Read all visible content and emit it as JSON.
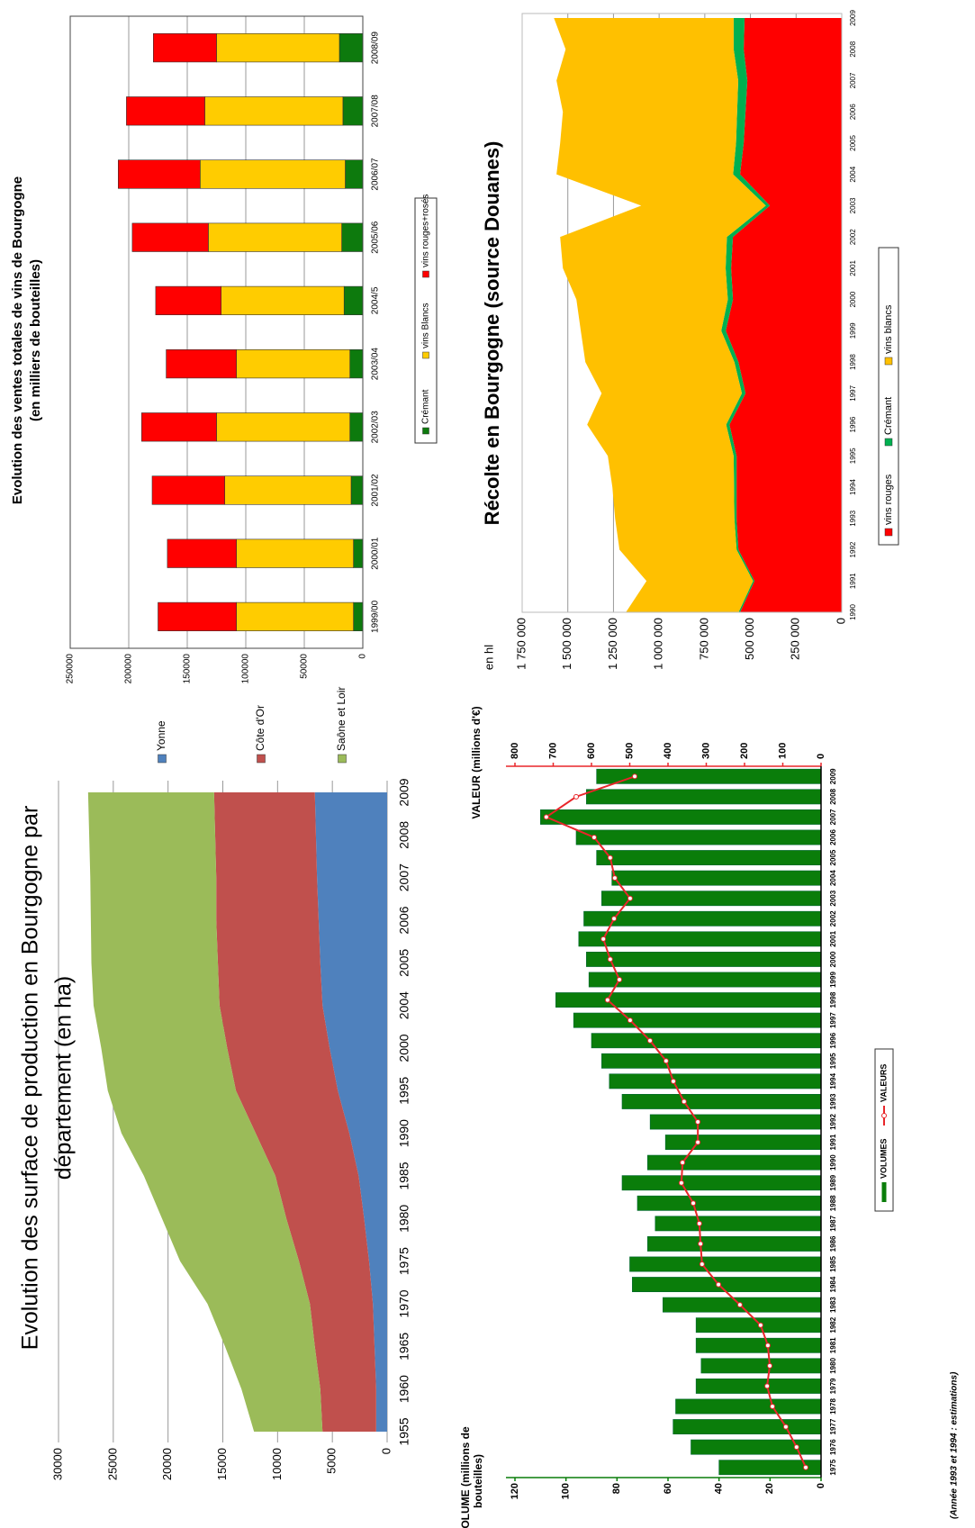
{
  "chart_data": [
    {
      "type": "bar",
      "stacked": true,
      "title": [
        "Evolution des ventes totales de vins de Bourgogne",
        "(en milliers de bouteilles)"
      ],
      "categories": [
        "1999/00",
        "2000/01",
        "2001/02",
        "2002/03",
        "2003/04",
        "2004/5",
        "2005/06",
        "2006/07",
        "2007/08",
        "2008/09"
      ],
      "series": [
        {
          "name": "Crémant",
          "color": "#0d7a0d",
          "values": [
            8000,
            8000,
            10000,
            11000,
            11000,
            16000,
            18000,
            15000,
            17000,
            20000
          ]
        },
        {
          "name": "vins Blancs",
          "color": "#ffcc00",
          "values": [
            100000,
            100000,
            108000,
            114000,
            97000,
            105000,
            114000,
            124000,
            118000,
            105000
          ]
        },
        {
          "name": "vins rouges+rosés",
          "color": "#ff0000",
          "values": [
            67000,
            59000,
            62000,
            64000,
            60000,
            56000,
            65000,
            70000,
            67000,
            54000
          ]
        }
      ],
      "ylim": [
        0,
        250000
      ],
      "yticks": [
        0,
        50000,
        100000,
        150000,
        200000,
        250000
      ],
      "grid": true,
      "legend": "bottom"
    },
    {
      "type": "area",
      "stacked": true,
      "title": "Récolte en Bourgogne (source Douanes)",
      "ylabel": "en hl",
      "x": [
        1990,
        1991,
        1992,
        1993,
        1994,
        1995,
        1996,
        1997,
        1998,
        1999,
        2000,
        2001,
        2002,
        2003,
        2004,
        2005,
        2006,
        2007,
        2008,
        2009
      ],
      "series": [
        {
          "name": "vins rouges",
          "color": "#ff0000",
          "values": [
            557000,
            478000,
            566000,
            576000,
            576000,
            576000,
            615000,
            527000,
            566000,
            635000,
            596000,
            606000,
            596000,
            394000,
            557000,
            537000,
            527000,
            517000,
            537000,
            532000
          ]
        },
        {
          "name": "Crémant",
          "color": "#00b050",
          "values": [
            8000,
            8000,
            10000,
            12000,
            14000,
            16000,
            18000,
            20000,
            22000,
            25000,
            28000,
            30000,
            33000,
            22000,
            38000,
            42000,
            46000,
            50000,
            55000,
            60000
          ]
        },
        {
          "name": "vins blancs",
          "color": "#ffc000",
          "values": [
            617000,
            583000,
            641000,
            653000,
            666000,
            689000,
            761000,
            768000,
            816000,
            769000,
            829000,
            891000,
            913000,
            682000,
            967000,
            963000,
            954000,
            995000,
            920000,
            984000
          ]
        }
      ],
      "xlim": [
        1990,
        2009
      ],
      "xticks": [
        1990,
        1991,
        1992,
        1993,
        1994,
        1995,
        1996,
        1997,
        1998,
        1999,
        2000,
        2001,
        2002,
        2003,
        2004,
        2005,
        2006,
        2007,
        2008,
        2009
      ],
      "ylim": [
        0,
        1750000
      ],
      "yticks": [
        0,
        {
          "value": 250000,
          "label": "250 000"
        },
        {
          "value": 500000,
          "label": "500 000"
        },
        {
          "value": 750000,
          "label": "750 000"
        },
        {
          "value": 1000000,
          "label": "1 000 000"
        },
        {
          "value": 1250000,
          "label": "1 250 000"
        },
        {
          "value": 1500000,
          "label": "1 500 000"
        },
        {
          "value": 1750000,
          "label": "1 750 000"
        }
      ],
      "grid": true,
      "legend": "bottom"
    },
    {
      "type": "area",
      "stacked": true,
      "title": [
        "Evolution des surface de production en Bourgogne par",
        "département (en ha)"
      ],
      "categories": [
        "1955",
        "1960",
        "1965",
        "1970",
        "1975",
        "1980",
        "1985",
        "1990",
        "1995",
        "2000",
        "2004",
        "2005",
        "2006",
        "2007",
        "2008",
        "2009"
      ],
      "series": [
        {
          "name": "Yonne",
          "color": "#4f81bd",
          "values": [
            1000,
            1000,
            1150,
            1300,
            1650,
            2100,
            2600,
            3450,
            4500,
            5250,
            5900,
            6100,
            6250,
            6400,
            6500,
            6600
          ]
        },
        {
          "name": "Côte d'Or",
          "color": "#c0504d",
          "values": [
            4900,
            5100,
            5450,
            5750,
            6400,
            7100,
            7600,
            8550,
            9300,
            9350,
            9400,
            9350,
            9350,
            9200,
            9200,
            9200
          ]
        },
        {
          "name": "Saône et Loir",
          "color": "#9bbb59",
          "values": [
            6250,
            7200,
            8200,
            9350,
            10850,
            11350,
            12000,
            12250,
            11700,
            11500,
            11500,
            11550,
            11450,
            11500,
            11500,
            11500
          ]
        }
      ],
      "ylim": [
        0,
        30000
      ],
      "yticks": [
        0,
        5000,
        10000,
        15000,
        20000,
        25000,
        30000
      ],
      "grid": true,
      "legend": "right"
    },
    {
      "type": "bar",
      "ylabel": [
        "VOLUME (millions de",
        "bouteilles)"
      ],
      "y2label": "VALEUR (millions d'€)",
      "note": "(Année 1993 et 1994 : estimations)",
      "categories": [
        "1975",
        "1976",
        "1977",
        "1978",
        "1979",
        "1980",
        "1981",
        "1982",
        "1983",
        "1984",
        "1985",
        "1986",
        "1987",
        "1988",
        "1989",
        "1990",
        "1991",
        "1992",
        "1993",
        "1994",
        "1995",
        "1996",
        "1997",
        "1998",
        "1999",
        "2000",
        "2001",
        "2002",
        "2003",
        "2004",
        "2005",
        "2006",
        "2007",
        "2008",
        "2009"
      ],
      "series": [
        {
          "name": "VOLUMES",
          "color": "#0a7d0a",
          "values": [
            40,
            51,
            58,
            57,
            49,
            47,
            49,
            49,
            62,
            74,
            75,
            68,
            65,
            72,
            78,
            68,
            61,
            67,
            78,
            83,
            86,
            90,
            97,
            104,
            91,
            92,
            95,
            93,
            86,
            82,
            88,
            96,
            110,
            92,
            88
          ]
        },
        {
          "name": "VALEURS",
          "color": "#e8262a",
          "axis": "y2",
          "values": [
            40,
            64,
            92,
            127,
            141,
            134,
            139,
            158,
            212,
            268,
            311,
            315,
            318,
            334,
            365,
            362,
            322,
            322,
            358,
            386,
            405,
            447,
            499,
            558,
            527,
            551,
            569,
            541,
            499,
            539,
            551,
            593,
            718,
            640,
            487
          ]
        }
      ],
      "ylim": [
        0,
        120
      ],
      "yticks": [
        0,
        20,
        40,
        60,
        80,
        100,
        120
      ],
      "y2lim": [
        0,
        800
      ],
      "y2ticks": [
        0,
        100,
        200,
        300,
        400,
        500,
        600,
        700,
        800
      ],
      "legend": "bottom"
    }
  ]
}
